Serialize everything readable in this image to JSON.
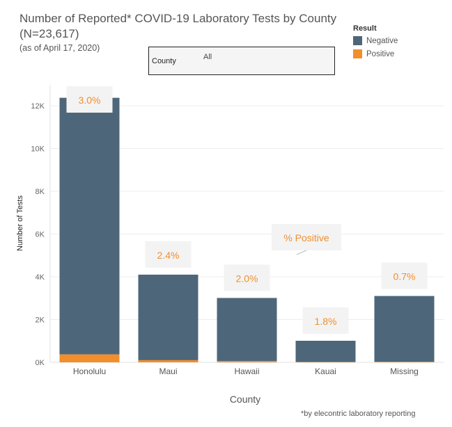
{
  "title": "Number of Reported* COVID-19 Laboratory Tests by County (N=23,617)",
  "subtitle": "(as of April 17, 2020)",
  "filter": {
    "label": "County",
    "value": "All"
  },
  "legend": {
    "title": "Result",
    "items": [
      {
        "label": "Negative",
        "color": "#4e667a"
      },
      {
        "label": "Positive",
        "color": "#f28e2b"
      }
    ]
  },
  "footnote": "*by elecontric laboratory reporting",
  "chart_data": {
    "type": "bar",
    "stacked": true,
    "categories": [
      "Honolulu",
      "Maui",
      "Hawaii",
      "Kauai",
      "Missing"
    ],
    "series": [
      {
        "name": "Negative",
        "values": [
          12000,
          4000,
          2950,
          990,
          3080
        ],
        "color": "#4e667a"
      },
      {
        "name": "Positive",
        "values": [
          370,
          100,
          60,
          18,
          22
        ],
        "color": "#f28e2b"
      }
    ],
    "pct_positive_labels": [
      "3.0%",
      "2.4%",
      "2.0%",
      "1.8%",
      "0.7%"
    ],
    "annotation": "% Positive",
    "xlabel": "County",
    "ylabel": "Number of Tests",
    "yticks": [
      0,
      2000,
      4000,
      6000,
      8000,
      10000,
      12000
    ],
    "ytick_labels": [
      "0K",
      "2K",
      "4K",
      "6K",
      "8K",
      "10K",
      "12K"
    ],
    "ylim": [
      0,
      12400
    ],
    "grid": true
  }
}
